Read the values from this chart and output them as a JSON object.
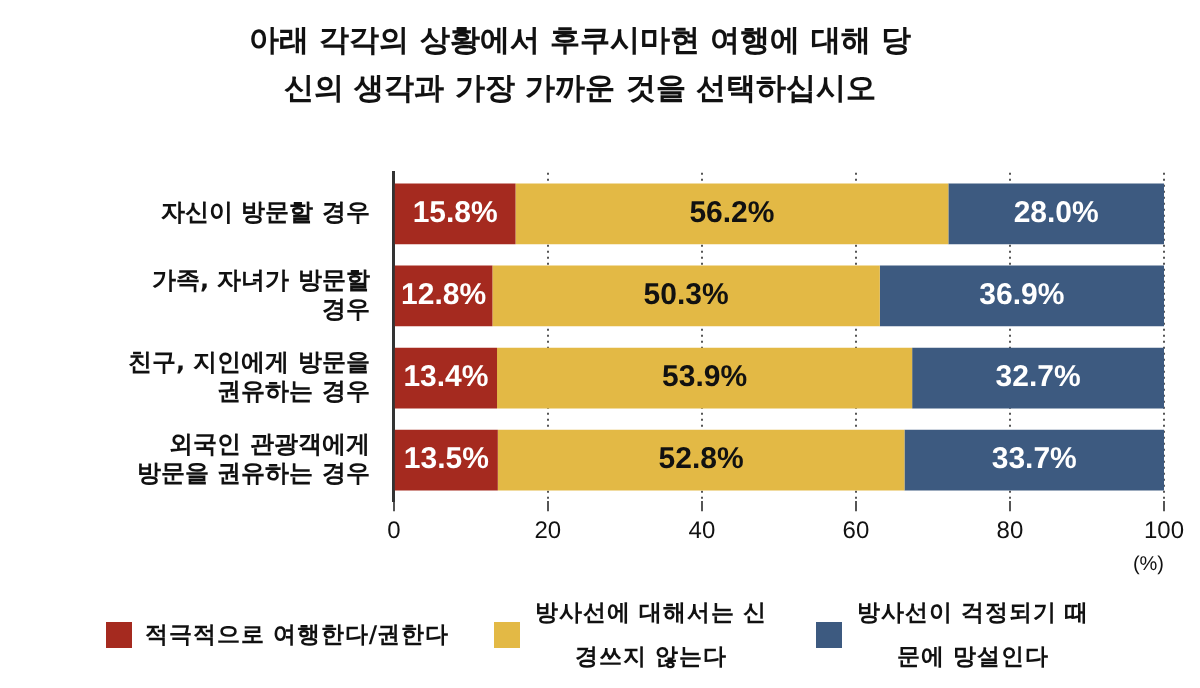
{
  "chart_data": {
    "type": "bar",
    "orientation": "horizontal",
    "stacked": true,
    "title": "아래 각각의 상황에서 후쿠시마현 여행에 대해 당신의 생각과 가장 가까운 것을 선택하십시오",
    "xlabel": "(%)",
    "categories": [
      "자신이 방문할 경우",
      "가족, 자녀가 방문할 경우",
      "친구, 지인에게 방문을 권유하는 경우",
      "외국인 관광객에게 방문을 권유하는 경우"
    ],
    "series": [
      {
        "name": "적극적으로 여행한다/권한다",
        "color": "#a52a1f",
        "values": [
          15.8,
          12.8,
          13.4,
          13.5
        ],
        "value_labels": [
          "15.8%",
          "12.8%",
          "13.4%",
          "13.5%"
        ]
      },
      {
        "name": "방사선에 대해서는 신경쓰지 않는다",
        "color": "#e3b945",
        "values": [
          56.2,
          50.3,
          53.9,
          52.8
        ],
        "value_labels": [
          "56.2%",
          "50.3%",
          "53.9%",
          "52.8%"
        ]
      },
      {
        "name": "방사선이 걱정되기 때문에 망설인다",
        "color": "#3d5a80",
        "values": [
          28.0,
          36.9,
          32.7,
          33.7
        ],
        "value_labels": [
          "28.0%",
          "36.9%",
          "32.7%",
          "33.7%"
        ]
      }
    ],
    "xlim": [
      0,
      100
    ],
    "xticks": [
      0,
      20,
      40,
      60,
      80,
      100
    ],
    "grid": "x",
    "legend": "bottom"
  }
}
